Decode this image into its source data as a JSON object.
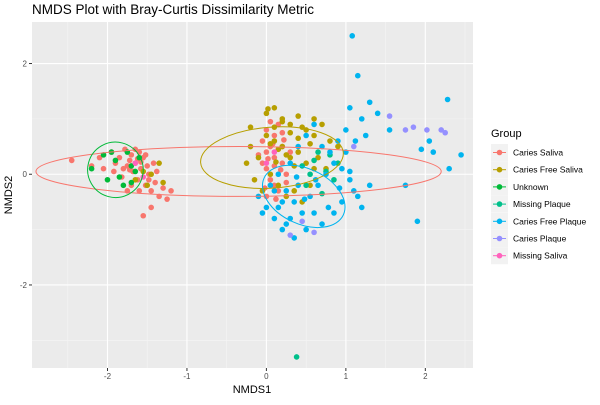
{
  "chart_data": {
    "type": "scatter",
    "title": "NMDS Plot with Bray-Curtis Dissimilarity Metric",
    "xlabel": "NMDS1",
    "ylabel": "NMDS2",
    "xlim": [
      -2.95,
      2.6
    ],
    "ylim": [
      -3.5,
      2.75
    ],
    "x_ticks": [
      -2,
      -1,
      0,
      1,
      2
    ],
    "y_ticks": [
      -2,
      0,
      2
    ],
    "x_tick_labels": [
      "-2",
      "-1",
      "0",
      "1",
      "2"
    ],
    "y_tick_labels": [
      "-2",
      "0",
      "2"
    ],
    "grid": true,
    "legend": {
      "title": "Group",
      "placement": "right",
      "entries": [
        "Caries Saliva",
        "Caries Free Saliva",
        "Unknown",
        "Missing Plaque",
        "Caries Free Plaque",
        "Caries Plaque",
        "Missing Saliva"
      ]
    },
    "series": [
      {
        "name": "Caries Saliva",
        "color": "#F8766D",
        "ellipse": {
          "center": [
            -0.35,
            0.05
          ],
          "rx": 2.55,
          "ry": 0.45
        },
        "points": [
          [
            -2.45,
            0.25
          ],
          [
            -2.2,
            0.15
          ],
          [
            -2.1,
            0.3
          ],
          [
            -2.05,
            0.1
          ],
          [
            -1.95,
            0.4
          ],
          [
            -1.9,
            0.2
          ],
          [
            -1.85,
            0.3
          ],
          [
            -1.82,
            -0.05
          ],
          [
            -1.78,
            0.45
          ],
          [
            -1.75,
            0.15
          ],
          [
            -1.72,
            0.25
          ],
          [
            -1.7,
            0.35
          ],
          [
            -1.68,
            0.05
          ],
          [
            -1.65,
            0.2
          ],
          [
            -1.62,
            -0.1
          ],
          [
            -1.6,
            0.4
          ],
          [
            -1.58,
            0.1
          ],
          [
            -1.55,
            0.3
          ],
          [
            -1.52,
            -0.2
          ],
          [
            -1.5,
            0.15
          ],
          [
            -1.48,
            0.0
          ],
          [
            -1.45,
            -0.3
          ],
          [
            -1.42,
            0.2
          ],
          [
            -1.4,
            -0.15
          ],
          [
            -1.38,
            0.05
          ],
          [
            -1.35,
            -0.4
          ],
          [
            -1.3,
            -0.25
          ],
          [
            -1.25,
            -0.45
          ],
          [
            -1.2,
            -0.3
          ],
          [
            -1.55,
            -0.75
          ],
          [
            -1.45,
            -0.6
          ],
          [
            -1.8,
            0.1
          ],
          [
            -1.7,
            -0.2
          ],
          [
            -1.6,
            -0.3
          ],
          [
            -1.65,
            0.45
          ],
          [
            -1.75,
            -0.3
          ],
          [
            -1.52,
            0.35
          ],
          [
            -1.62,
            0.28
          ],
          [
            -1.72,
            0.08
          ],
          [
            -1.92,
            0.05
          ],
          [
            -1.48,
            -0.1
          ],
          [
            -1.58,
            0.22
          ],
          [
            0.0,
            0.8
          ],
          [
            0.05,
            0.5
          ],
          [
            0.1,
            0.3
          ],
          [
            0.0,
            0.1
          ],
          [
            -0.05,
            0.6
          ],
          [
            0.15,
            0.9
          ],
          [
            0.2,
            0.2
          ],
          [
            0.05,
            -0.1
          ],
          [
            0.1,
            0.7
          ],
          [
            0.0,
            0.4
          ],
          [
            -0.05,
            0.2
          ],
          [
            0.15,
            -0.3
          ],
          [
            0.2,
            0.5
          ],
          [
            0.25,
            0.0
          ],
          [
            0.1,
            -0.2
          ],
          [
            0.05,
            0.95
          ],
          [
            0.2,
            0.75
          ],
          [
            0.3,
            0.4
          ],
          [
            0.0,
            -0.4
          ],
          [
            0.1,
            0.15
          ],
          [
            -0.1,
            0.35
          ],
          [
            0.25,
            -0.15
          ],
          [
            0.08,
            0.55
          ],
          [
            0.18,
            0.08
          ],
          [
            -0.02,
            -0.25
          ],
          [
            0.12,
            -0.45
          ],
          [
            0.22,
            0.62
          ],
          [
            0.02,
            0.28
          ]
        ]
      },
      {
        "name": "Caries Free Saliva",
        "color": "#B79F00",
        "ellipse": {
          "center": [
            0.07,
            0.3
          ],
          "rx": 0.9,
          "ry": 0.55,
          "angle": 4
        },
        "points": [
          [
            -1.35,
            0.2
          ],
          [
            -1.45,
            0.0
          ],
          [
            -1.5,
            -0.2
          ],
          [
            -1.55,
            0.05
          ],
          [
            -1.65,
            -0.1
          ],
          [
            -1.3,
            -0.15
          ],
          [
            0.0,
            1.1
          ],
          [
            0.1,
            1.2
          ],
          [
            0.2,
            1.0
          ],
          [
            0.3,
            0.9
          ],
          [
            0.4,
            1.05
          ],
          [
            0.5,
            0.8
          ],
          [
            0.6,
            0.7
          ],
          [
            0.7,
            0.9
          ],
          [
            0.8,
            0.6
          ],
          [
            0.9,
            0.5
          ],
          [
            0.1,
            0.6
          ],
          [
            0.2,
            0.5
          ],
          [
            0.3,
            0.3
          ],
          [
            0.4,
            0.4
          ],
          [
            0.5,
            0.2
          ],
          [
            0.6,
            0.1
          ],
          [
            0.05,
            0.0
          ],
          [
            0.15,
            -0.2
          ],
          [
            0.25,
            -0.4
          ],
          [
            0.35,
            -0.3
          ],
          [
            0.45,
            -0.5
          ],
          [
            0.55,
            -0.2
          ],
          [
            0.65,
            0.3
          ],
          [
            0.75,
            0.1
          ],
          [
            -0.2,
            0.5
          ],
          [
            -0.1,
            0.3
          ],
          [
            -0.25,
            0.2
          ],
          [
            -0.15,
            -0.1
          ],
          [
            -0.05,
            -0.3
          ],
          [
            0.0,
            0.7
          ],
          [
            0.1,
            0.85
          ],
          [
            0.2,
            0.95
          ],
          [
            0.3,
            0.75
          ],
          [
            0.4,
            0.65
          ],
          [
            0.15,
            0.45
          ],
          [
            0.25,
            0.35
          ],
          [
            0.35,
            0.15
          ],
          [
            0.05,
            0.55
          ],
          [
            0.45,
            0.85
          ],
          [
            0.55,
            0.55
          ],
          [
            0.6,
            1.0
          ],
          [
            -0.2,
            0.85
          ],
          [
            0.02,
            1.18
          ],
          [
            0.12,
            0.22
          ]
        ]
      },
      {
        "name": "Unknown",
        "color": "#00BA38",
        "ellipse": {
          "center": [
            -1.9,
            0.08
          ],
          "rx": 0.35,
          "ry": 0.5,
          "angle": -15
        },
        "points": [
          [
            -2.2,
            0.1
          ],
          [
            -2.05,
            0.35
          ],
          [
            -1.85,
            -0.05
          ],
          [
            -1.75,
            0.4
          ],
          [
            -1.7,
            0.15
          ],
          [
            -1.8,
            -0.2
          ],
          [
            -1.65,
            0.05
          ],
          [
            -1.9,
            0.25
          ],
          [
            -2.0,
            -0.1
          ],
          [
            -1.6,
            0.3
          ],
          [
            -1.95,
            0.4
          ],
          [
            -1.7,
            -0.15
          ]
        ]
      },
      {
        "name": "Missing Plaque",
        "color": "#00C08B",
        "points": [
          [
            0.38,
            -3.3
          ],
          [
            0.6,
            0.25
          ],
          [
            0.75,
            0.05
          ],
          [
            0.5,
            -0.2
          ],
          [
            0.85,
            -0.1
          ],
          [
            0.65,
            0.4
          ],
          [
            0.9,
            0.2
          ],
          [
            0.55,
            0.0
          ],
          [
            0.7,
            -0.35
          ],
          [
            0.8,
            0.35
          ],
          [
            0.45,
            0.15
          ]
        ]
      },
      {
        "name": "Caries Free Plaque",
        "color": "#00B4EF",
        "ellipse": {
          "center": [
            0.47,
            -0.4
          ],
          "rx": 0.55,
          "ry": 0.5,
          "angle": -25
        },
        "points": [
          [
            1.08,
            2.5
          ],
          [
            1.15,
            1.78
          ],
          [
            1.05,
            1.2
          ],
          [
            1.3,
            1.3
          ],
          [
            1.2,
            1.0
          ],
          [
            1.4,
            1.1
          ],
          [
            1.55,
            0.8
          ],
          [
            1.25,
            0.7
          ],
          [
            2.05,
            0.6
          ],
          [
            2.1,
            0.4
          ],
          [
            2.3,
            0.1
          ],
          [
            2.45,
            0.35
          ],
          [
            1.9,
            -0.85
          ],
          [
            1.75,
            -0.2
          ],
          [
            1.95,
            0.45
          ],
          [
            2.28,
            1.35
          ],
          [
            1.0,
            0.4
          ],
          [
            1.05,
            0.05
          ],
          [
            1.1,
            -0.3
          ],
          [
            0.95,
            -0.5
          ],
          [
            0.85,
            -0.7
          ],
          [
            0.7,
            -0.9
          ],
          [
            0.5,
            -1.0
          ],
          [
            0.35,
            -1.15
          ],
          [
            0.2,
            -1.0
          ],
          [
            0.1,
            -0.8
          ],
          [
            0.0,
            -0.6
          ],
          [
            -0.1,
            -0.4
          ],
          [
            0.05,
            -0.2
          ],
          [
            0.15,
            0.0
          ],
          [
            0.25,
            -0.3
          ],
          [
            0.35,
            -0.5
          ],
          [
            0.45,
            -0.7
          ],
          [
            0.55,
            -0.4
          ],
          [
            0.65,
            -0.2
          ],
          [
            0.75,
            0.0
          ],
          [
            0.85,
            0.2
          ],
          [
            0.95,
            0.1
          ],
          [
            1.05,
            -0.1
          ],
          [
            1.15,
            -0.4
          ],
          [
            1.2,
            -0.6
          ],
          [
            1.3,
            -0.2
          ],
          [
            1.12,
            0.6
          ],
          [
            0.6,
            -0.7
          ],
          [
            0.4,
            -0.2
          ],
          [
            0.3,
            -0.8
          ],
          [
            0.2,
            -0.5
          ],
          [
            0.1,
            -0.3
          ],
          [
            -0.05,
            -0.7
          ],
          [
            0.7,
            0.5
          ],
          [
            0.8,
            0.4
          ],
          [
            0.9,
            0.6
          ],
          [
            1.0,
            0.8
          ],
          [
            0.6,
            0.9
          ],
          [
            0.5,
            0.7
          ],
          [
            0.4,
            0.5
          ],
          [
            0.3,
            0.2
          ],
          [
            0.25,
            -0.9
          ],
          [
            0.15,
            -0.6
          ],
          [
            0.78,
            -0.6
          ],
          [
            0.62,
            -0.1
          ],
          [
            0.48,
            -0.45
          ],
          [
            0.92,
            -0.25
          ],
          [
            0.38,
            -0.05
          ]
        ]
      },
      {
        "name": "Caries Plaque",
        "color": "#9590FF",
        "points": [
          [
            1.75,
            0.8
          ],
          [
            1.85,
            0.85
          ],
          [
            2.02,
            0.8
          ],
          [
            2.2,
            0.8
          ],
          [
            2.25,
            0.75
          ],
          [
            1.55,
            1.05
          ],
          [
            0.3,
            -1.1
          ],
          [
            0.6,
            -1.05
          ],
          [
            0.45,
            -0.85
          ],
          [
            1.1,
            0.5
          ]
        ]
      },
      {
        "name": "Missing Saliva",
        "color": "#FF62BC",
        "points": [
          [
            -1.65,
            0.2
          ],
          [
            -1.55,
            -0.05
          ],
          [
            0.1,
            0.4
          ],
          [
            0.0,
            0.2
          ]
        ]
      }
    ]
  }
}
